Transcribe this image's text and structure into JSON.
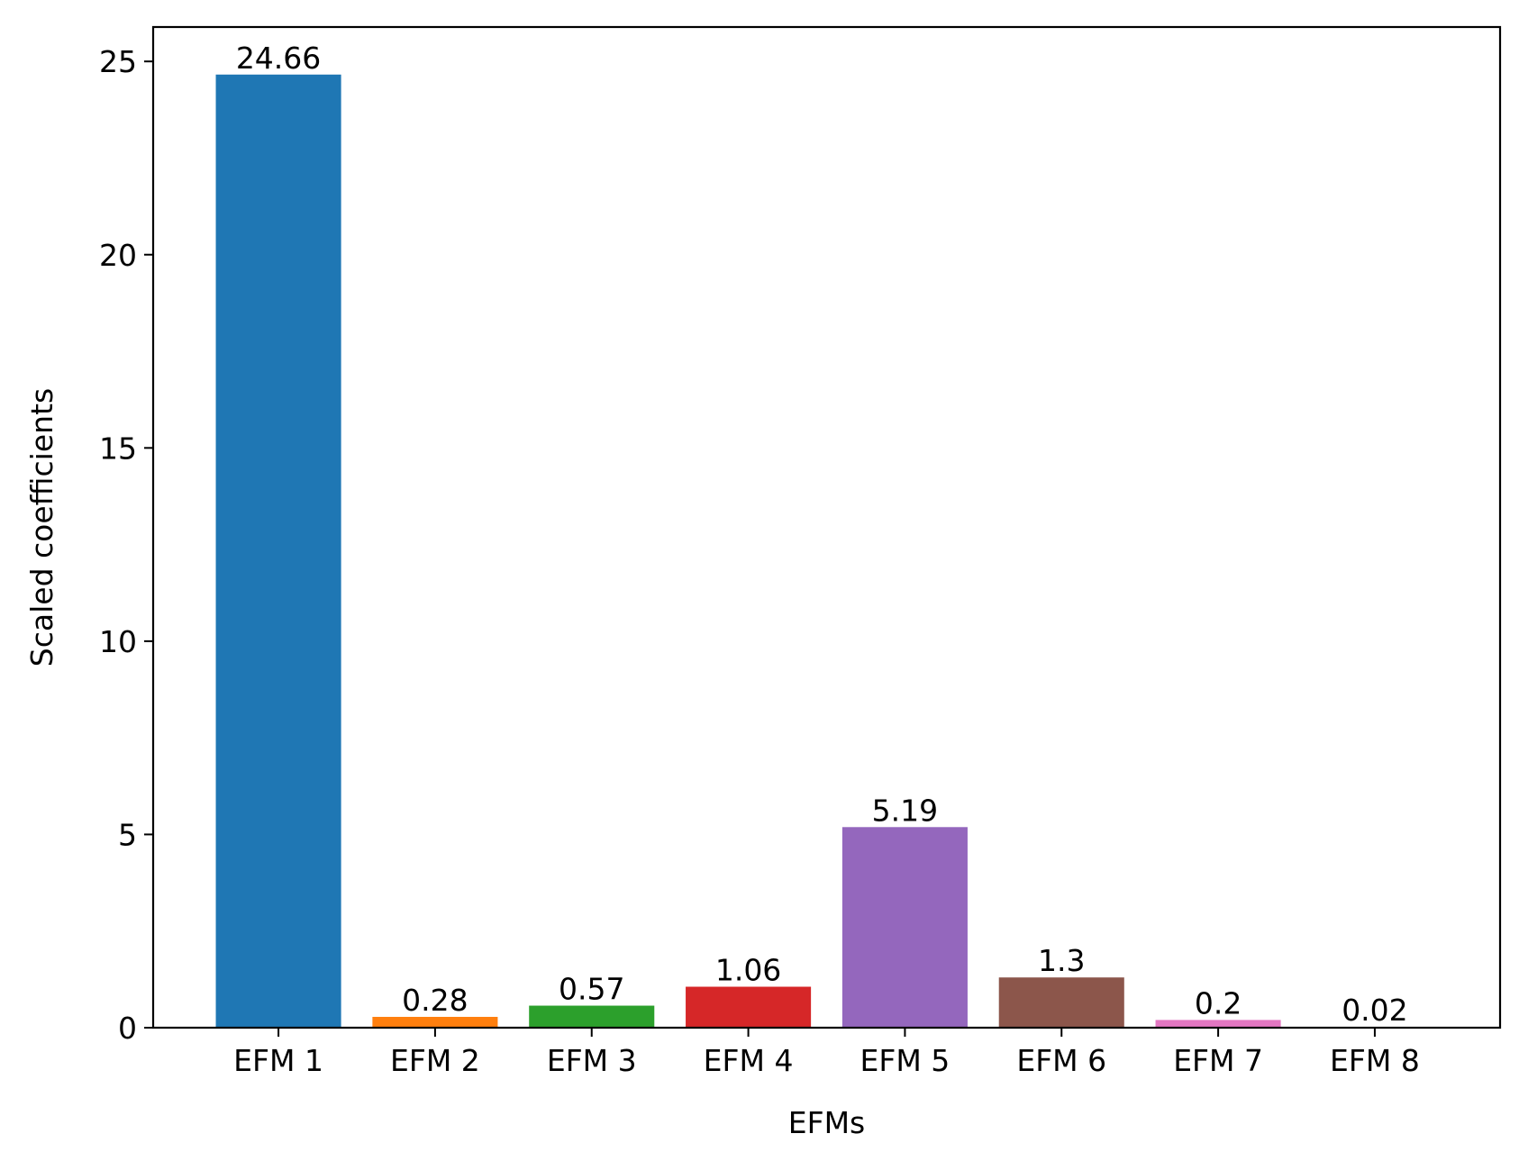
{
  "chart_data": {
    "type": "bar",
    "title": "",
    "xlabel": "EFMs",
    "ylabel": "Scaled coefficients",
    "categories": [
      "EFM 1",
      "EFM 2",
      "EFM 3",
      "EFM 4",
      "EFM 5",
      "EFM 6",
      "EFM 7",
      "EFM 8"
    ],
    "values": [
      24.66,
      0.28,
      0.57,
      1.06,
      5.19,
      1.3,
      0.2,
      0.02
    ],
    "value_labels": [
      "24.66",
      "0.28",
      "0.57",
      "1.06",
      "5.19",
      "1.3",
      "0.2",
      "0.02"
    ],
    "colors": [
      "#1f77b4",
      "#ff7f0e",
      "#2ca02c",
      "#d62728",
      "#9467bd",
      "#8c564b",
      "#e377c2",
      "#7f7f7f"
    ],
    "ylim": [
      0,
      25.89
    ],
    "yticks": [
      0,
      5,
      10,
      15,
      20,
      25
    ],
    "ytick_labels": [
      "0",
      "5",
      "10",
      "15",
      "20",
      "25"
    ],
    "grid": false,
    "legend": false
  }
}
